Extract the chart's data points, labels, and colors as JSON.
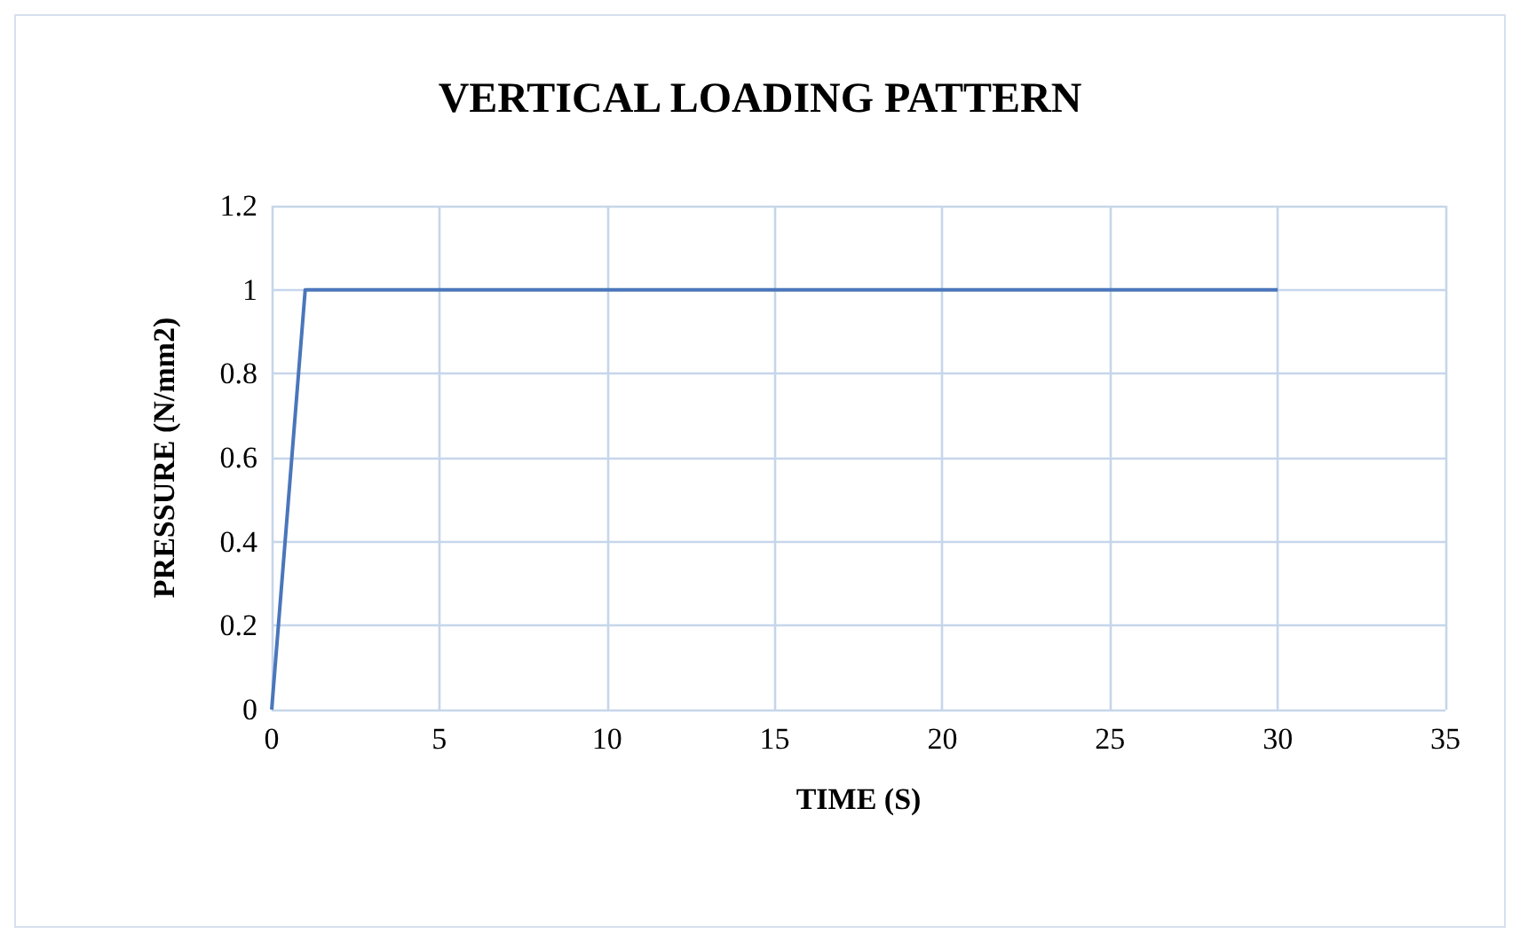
{
  "chart_data": {
    "type": "line",
    "title": "VERTICAL LOADING PATTERN",
    "xlabel": "TIME (S)",
    "ylabel": "PRESSURE (N/mm2)",
    "x": [
      0,
      1,
      30
    ],
    "series": [
      {
        "color": "#4a76bb",
        "values": [
          0,
          1,
          1
        ]
      }
    ],
    "xlim": [
      0,
      35
    ],
    "xticks": [
      0,
      5,
      10,
      15,
      20,
      25,
      30,
      35
    ],
    "ylim": [
      0,
      1.2
    ],
    "yticks": [
      0,
      0.2,
      0.4,
      0.6,
      0.8,
      1,
      1.2
    ],
    "grid": true,
    "marker": "none",
    "line_style": "solid"
  }
}
